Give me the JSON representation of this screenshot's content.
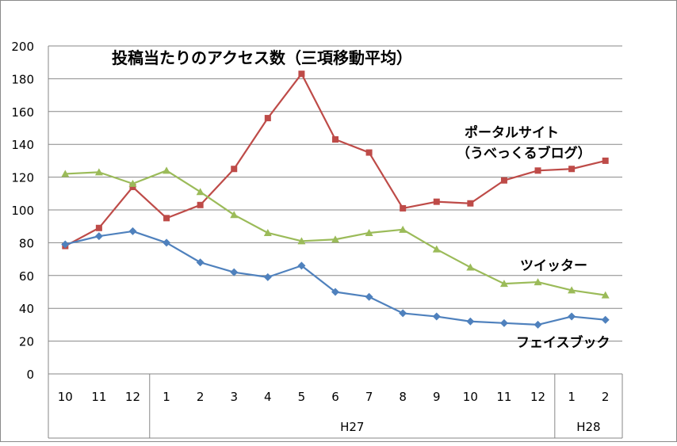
{
  "chart_data": {
    "type": "line",
    "title": "投稿当たりのアクセス数（三項移動平均）",
    "categories": [
      "10",
      "11",
      "12",
      "1",
      "2",
      "3",
      "4",
      "5",
      "6",
      "7",
      "8",
      "9",
      "10",
      "11",
      "12",
      "1",
      "2"
    ],
    "category_groups": [
      {
        "label": "",
        "start": 0,
        "end": 2
      },
      {
        "label": "H27",
        "start": 3,
        "end": 14
      },
      {
        "label": "H28",
        "start": 15,
        "end": 16
      }
    ],
    "ylim": [
      0,
      200
    ],
    "yticks": [
      "0",
      "20",
      "40",
      "60",
      "80",
      "100",
      "120",
      "140",
      "160",
      "180",
      "200"
    ],
    "grid": true,
    "series": [
      {
        "name": "ポータルサイト",
        "name_line2": "（うべっくるブログ）",
        "color": "#be4b48",
        "marker": "square",
        "values": [
          78,
          89,
          114,
          95,
          103,
          125,
          156,
          183,
          143,
          135,
          101,
          105,
          104,
          118,
          124,
          125,
          130
        ]
      },
      {
        "name": "ツイッター",
        "color": "#9bbb59",
        "marker": "triangle",
        "values": [
          122,
          123,
          116,
          124,
          111,
          97,
          86,
          81,
          82,
          86,
          88,
          76,
          65,
          55,
          56,
          51,
          48
        ]
      },
      {
        "name": "フェイスブック",
        "color": "#4f81bd",
        "marker": "diamond",
        "values": [
          79,
          84,
          87,
          80,
          68,
          62,
          59,
          66,
          50,
          47,
          37,
          35,
          32,
          31,
          30,
          35,
          33
        ]
      }
    ]
  }
}
